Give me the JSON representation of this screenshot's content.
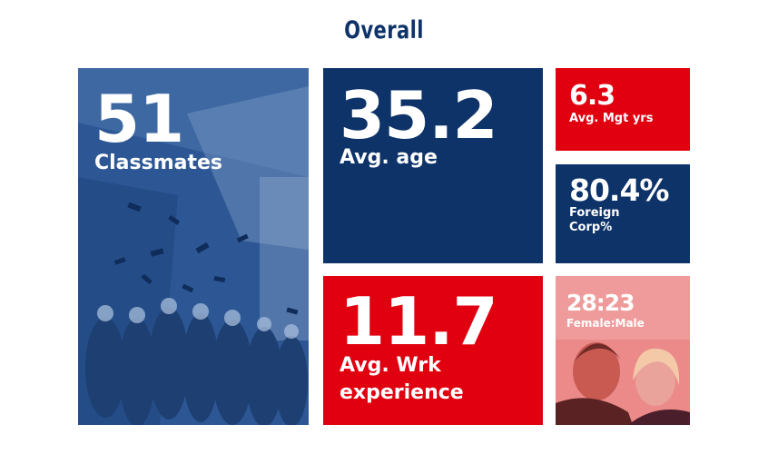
{
  "heading": "Overall",
  "colors": {
    "navy": "#0d3369",
    "red": "#e0000f",
    "pink": "#e97878",
    "title": "#0d3369"
  },
  "tiles": {
    "classmates": {
      "value": "51",
      "label": "Classmates"
    },
    "age": {
      "value": "35.2",
      "label": "Avg. age"
    },
    "mgt": {
      "value": "6.3",
      "label": "Avg. Mgt yrs"
    },
    "foreign": {
      "value": "80.4%",
      "label_line1": "Foreign",
      "label_line2": "Corp%"
    },
    "work": {
      "value": "11.7",
      "label_line1": "Avg. Wrk",
      "label_line2": "experience"
    },
    "gender": {
      "value": "28:23",
      "label": "Female:Male"
    }
  }
}
